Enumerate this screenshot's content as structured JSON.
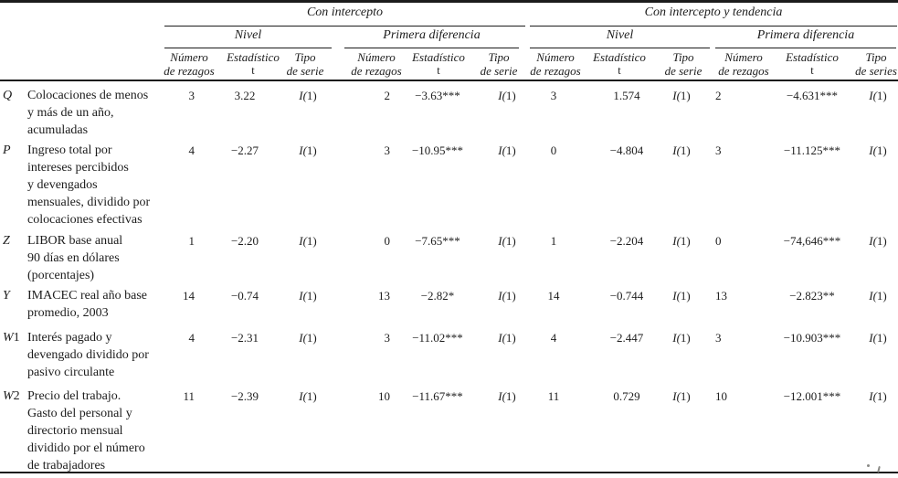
{
  "table": {
    "groups": [
      {
        "label": "Con intercepto",
        "subgroups": [
          "Nivel",
          "Primera diferencia"
        ]
      },
      {
        "label": "Con intercepto y tendencia",
        "subgroups": [
          "Nivel",
          "Primera diferencia"
        ]
      }
    ],
    "columns": [
      {
        "l1": "Número",
        "l2": "de rezagos"
      },
      {
        "l1": "Estadístico",
        "l2": "t"
      },
      {
        "l1": "Tipo",
        "l2": "de serie"
      },
      {
        "l1": "Número",
        "l2": "de rezagos"
      },
      {
        "l1": "Estadístico",
        "l2": "t"
      },
      {
        "l1": "Tipo",
        "l2": "de serie"
      },
      {
        "l1": "Número",
        "l2": "de rezagos"
      },
      {
        "l1": "Estadístico",
        "l2": "t"
      },
      {
        "l1": "Tipo",
        "l2": "de serie"
      },
      {
        "l1": "Número",
        "l2": "de rezagos"
      },
      {
        "l1": "Estadístico",
        "l2": "t"
      },
      {
        "l1": "Tipo",
        "l2": "de series"
      }
    ],
    "rows": [
      {
        "var": "Q",
        "desc_lines": [
          "Colocaciones de menos",
          "y más de un año,",
          "acumuladas"
        ],
        "cells": [
          "3",
          "3.22",
          "I(1)",
          "2",
          "−3.63***",
          "I(1)",
          "3",
          "1.574",
          "I(1)",
          "2",
          "−4.631***",
          "I(1)"
        ]
      },
      {
        "var": "P",
        "desc_lines": [
          "Ingreso total por",
          "intereses percibidos",
          "y devengados",
          "mensuales, dividido por",
          "colocaciones efectivas"
        ],
        "cells": [
          "4",
          "−2.27",
          "I(1)",
          "3",
          "−10.95***",
          "I(1)",
          "0",
          "−4.804",
          "I(1)",
          "3",
          "−11.125***",
          "I(1)"
        ]
      },
      {
        "var": "Z",
        "desc_lines": [
          "LIBOR base anual",
          "90 días en dólares",
          "(porcentajes)"
        ],
        "cells": [
          "1",
          "−2.20",
          "I(1)",
          "0",
          "−7.65***",
          "I(1)",
          "1",
          "−2.204",
          "I(1)",
          "0",
          "−74,646***",
          "I(1)"
        ]
      },
      {
        "var": "Y",
        "desc_lines": [
          "IMACEC real año base",
          "promedio, 2003"
        ],
        "cells": [
          "14",
          "−0.74",
          "I(1)",
          "13",
          "−2.82*",
          "I(1)",
          "14",
          "−0.744",
          "I(1)",
          "13",
          "−2.823**",
          "I(1)"
        ]
      },
      {
        "var": "W1",
        "desc_lines": [
          "Interés pagado y",
          "devengado dividido por",
          "pasivo circulante"
        ],
        "cells": [
          "4",
          "−2.31",
          "I(1)",
          "3",
          "−11.02***",
          "I(1)",
          "4",
          "−2.447",
          "I(1)",
          "3",
          "−10.903***",
          "I(1)"
        ]
      },
      {
        "var": "W2",
        "desc_lines": [
          "Precio del trabajo.",
          "Gasto del personal y",
          "directorio mensual",
          "dividido por el número",
          "de trabajadores"
        ],
        "cells": [
          "11",
          "−2.39",
          "I(1)",
          "10",
          "−11.67***",
          "I(1)",
          "11",
          "0.729",
          "I(1)",
          "10",
          "−12.001***",
          "I(1)"
        ]
      }
    ]
  }
}
